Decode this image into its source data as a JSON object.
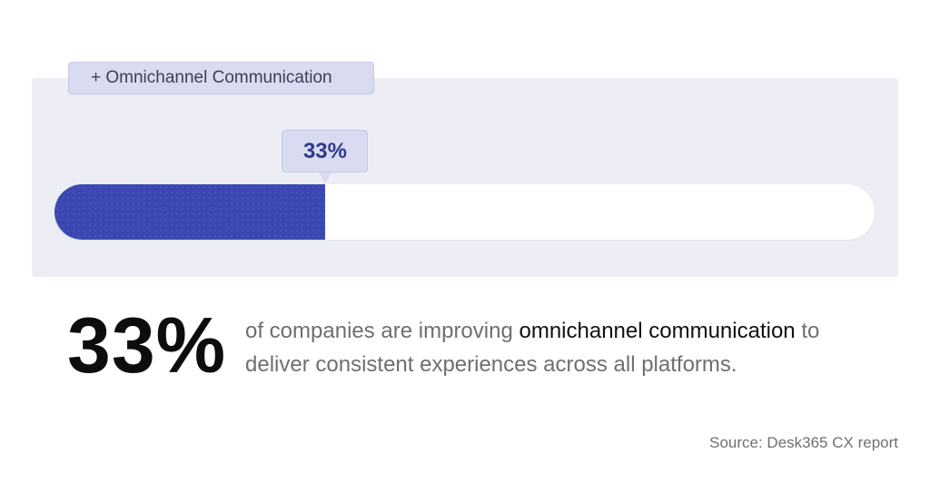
{
  "chart_data": {
    "type": "bar",
    "categories": [
      "+ Omnichannel Communication"
    ],
    "values": [
      33
    ],
    "value_label": "33%",
    "xlim": [
      0,
      100
    ],
    "fill_color": "#3b48b1",
    "track_color": "#ffffff"
  },
  "headline": {
    "value": "33%",
    "text_before": "of companies are improving ",
    "highlight": "omnichannel communication",
    "text_after": " to deliver consistent experiences across all platforms."
  },
  "source": "Source: Desk365 CX report"
}
